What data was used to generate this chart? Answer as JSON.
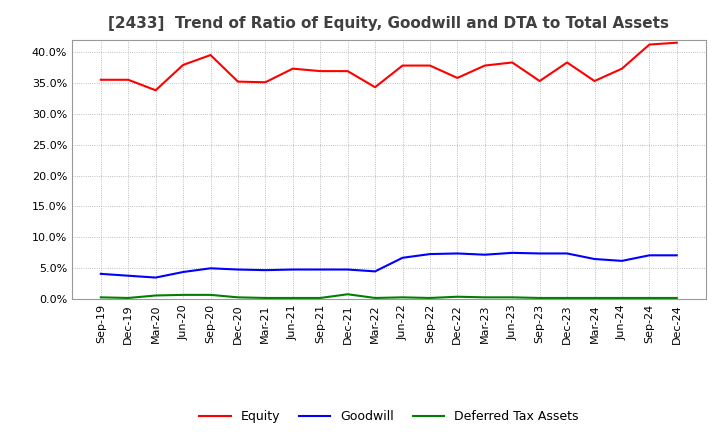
{
  "title": "[2433]  Trend of Ratio of Equity, Goodwill and DTA to Total Assets",
  "x_labels": [
    "Sep-19",
    "Dec-19",
    "Mar-20",
    "Jun-20",
    "Sep-20",
    "Dec-20",
    "Mar-21",
    "Jun-21",
    "Sep-21",
    "Dec-21",
    "Mar-22",
    "Jun-22",
    "Sep-22",
    "Dec-22",
    "Mar-23",
    "Jun-23",
    "Sep-23",
    "Dec-23",
    "Mar-24",
    "Jun-24",
    "Sep-24",
    "Dec-24"
  ],
  "equity": [
    35.5,
    35.5,
    33.8,
    37.9,
    39.5,
    35.2,
    35.1,
    37.3,
    36.9,
    36.9,
    34.3,
    37.8,
    37.8,
    35.8,
    37.8,
    38.3,
    35.3,
    38.3,
    35.3,
    37.3,
    41.2,
    41.5
  ],
  "goodwill": [
    4.1,
    3.8,
    3.5,
    4.4,
    5.0,
    4.8,
    4.7,
    4.8,
    4.8,
    4.8,
    4.5,
    6.7,
    7.3,
    7.4,
    7.2,
    7.5,
    7.4,
    7.4,
    6.5,
    6.2,
    7.1,
    7.1
  ],
  "dta": [
    0.3,
    0.2,
    0.6,
    0.7,
    0.7,
    0.3,
    0.2,
    0.2,
    0.2,
    0.8,
    0.2,
    0.3,
    0.2,
    0.4,
    0.3,
    0.3,
    0.2,
    0.2,
    0.2,
    0.2,
    0.2,
    0.2
  ],
  "equity_color": "#FF0000",
  "goodwill_color": "#0000FF",
  "dta_color": "#008000",
  "ylim": [
    0,
    42
  ],
  "yticks": [
    0,
    5,
    10,
    15,
    20,
    25,
    30,
    35,
    40
  ],
  "background_color": "#FFFFFF",
  "plot_bg_color": "#FFFFFF",
  "grid_color": "#AAAAAA",
  "legend_labels": [
    "Equity",
    "Goodwill",
    "Deferred Tax Assets"
  ],
  "title_fontsize": 11,
  "axis_fontsize": 8,
  "legend_fontsize": 9,
  "title_color": "#404040"
}
